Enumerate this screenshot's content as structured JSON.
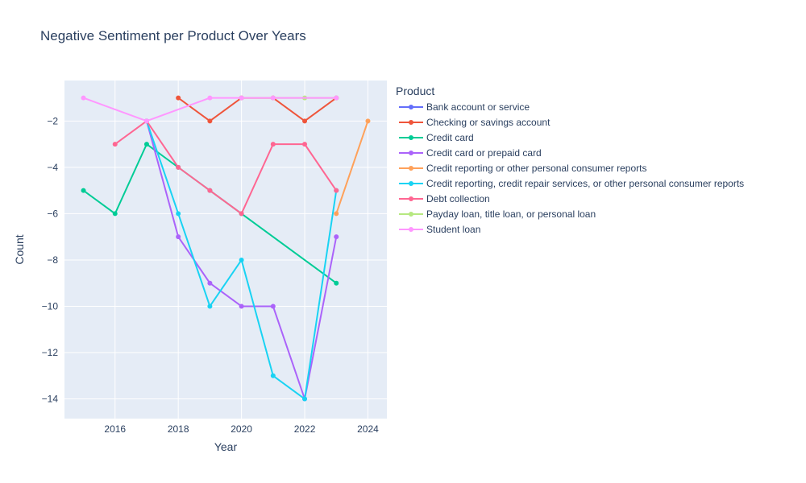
{
  "chart_data": {
    "type": "line",
    "title": "Negative Sentiment per Product Over Years",
    "xlabel": "Year",
    "ylabel": "Count",
    "xlim": [
      2014.4,
      2024.6
    ],
    "ylim": [
      -14.85,
      -0.25
    ],
    "x_ticks": [
      2016,
      2018,
      2020,
      2022,
      2024
    ],
    "y_ticks": [
      -14,
      -12,
      -10,
      -8,
      -6,
      -4,
      -2
    ],
    "grid": true,
    "legend_title": "Product",
    "legend_position": "right",
    "plot_bgcolor": "#e5ecf6",
    "series": [
      {
        "name": "Bank account or service",
        "color": "#636efa",
        "x": [
          2017
        ],
        "y": [
          -2
        ]
      },
      {
        "name": "Checking or savings account",
        "color": "#EF553B",
        "x": [
          2018,
          2019,
          2020,
          2021,
          2022,
          2023
        ],
        "y": [
          -1,
          -2,
          -1,
          -1,
          -2,
          -1
        ]
      },
      {
        "name": "Credit card",
        "color": "#00cc96",
        "x": [
          2015,
          2016,
          2017,
          2018,
          2019,
          2020,
          2023
        ],
        "y": [
          -5,
          -6,
          -3,
          -4,
          -5,
          -6,
          -9
        ]
      },
      {
        "name": "Credit card or prepaid card",
        "color": "#ab63fa",
        "x": [
          2017,
          2018,
          2019,
          2020,
          2021,
          2022,
          2023
        ],
        "y": [
          -2,
          -7,
          -9,
          -10,
          -10,
          -14,
          -7
        ]
      },
      {
        "name": "Credit reporting or other personal consumer reports",
        "color": "#FFA15A",
        "x": [
          2023,
          2024
        ],
        "y": [
          -6,
          -2
        ]
      },
      {
        "name": "Credit reporting, credit repair services, or other personal consumer reports",
        "color": "#19d3f3",
        "x": [
          2017,
          2018,
          2019,
          2020,
          2021,
          2022,
          2023
        ],
        "y": [
          -2,
          -6,
          -10,
          -8,
          -13,
          -14,
          -5
        ]
      },
      {
        "name": "Debt collection",
        "color": "#FF6692",
        "x": [
          2016,
          2017,
          2018,
          2019,
          2020,
          2021,
          2022,
          2023
        ],
        "y": [
          -3,
          -2,
          -4,
          -5,
          -6,
          -3,
          -3,
          -5
        ]
      },
      {
        "name": "Payday loan, title loan, or personal loan",
        "color": "#B6E880",
        "x": [
          2020,
          2021,
          2022,
          2023
        ],
        "y": [
          -1,
          -1,
          -1,
          -1
        ]
      },
      {
        "name": "Student loan",
        "color": "#FF97FF",
        "x": [
          2015,
          2017,
          2019,
          2020,
          2021,
          2023
        ],
        "y": [
          -1,
          -2,
          -1,
          -1,
          -1,
          -1
        ]
      }
    ]
  }
}
